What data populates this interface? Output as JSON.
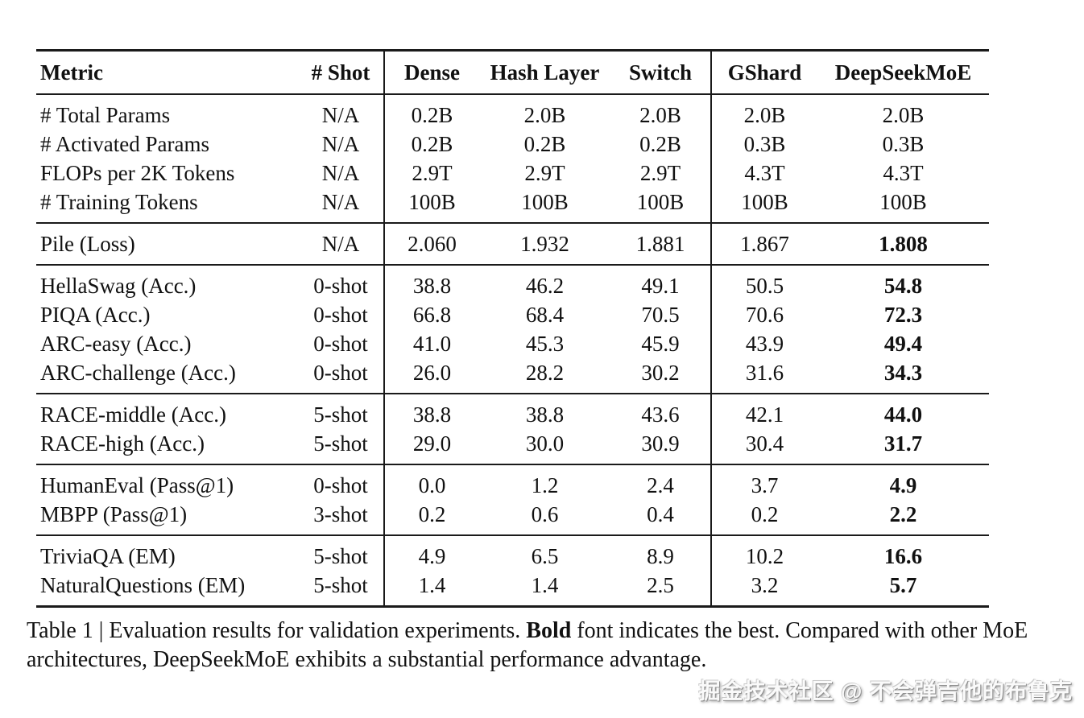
{
  "colors": {
    "background": "#ffffff",
    "text": "#111111",
    "rule": "#1a1a1a",
    "watermark": "#fafafa"
  },
  "table": {
    "header": [
      "Metric",
      "# Shot",
      "Dense",
      "Hash Layer",
      "Switch",
      "GShard",
      "DeepSeekMoE"
    ],
    "vertical_rule_after_columns": [
      1,
      4
    ],
    "groups": [
      {
        "name": "model-specs",
        "bold_last": false,
        "rows": [
          [
            "# Total Params",
            "N/A",
            "0.2B",
            "2.0B",
            "2.0B",
            "2.0B",
            "2.0B"
          ],
          [
            "# Activated Params",
            "N/A",
            "0.2B",
            "0.2B",
            "0.2B",
            "0.3B",
            "0.3B"
          ],
          [
            "FLOPs per 2K Tokens",
            "N/A",
            "2.9T",
            "2.9T",
            "2.9T",
            "4.3T",
            "4.3T"
          ],
          [
            "# Training Tokens",
            "N/A",
            "100B",
            "100B",
            "100B",
            "100B",
            "100B"
          ]
        ]
      },
      {
        "name": "pile-loss",
        "bold_last": true,
        "rows": [
          [
            "Pile (Loss)",
            "N/A",
            "2.060",
            "1.932",
            "1.881",
            "1.867",
            "1.808"
          ]
        ]
      },
      {
        "name": "zero-shot-accuracy",
        "bold_last": true,
        "rows": [
          [
            "HellaSwag (Acc.)",
            "0-shot",
            "38.8",
            "46.2",
            "49.1",
            "50.5",
            "54.8"
          ],
          [
            "PIQA (Acc.)",
            "0-shot",
            "66.8",
            "68.4",
            "70.5",
            "70.6",
            "72.3"
          ],
          [
            "ARC-easy (Acc.)",
            "0-shot",
            "41.0",
            "45.3",
            "45.9",
            "43.9",
            "49.4"
          ],
          [
            "ARC-challenge (Acc.)",
            "0-shot",
            "26.0",
            "28.2",
            "30.2",
            "31.6",
            "34.3"
          ]
        ]
      },
      {
        "name": "race-accuracy",
        "bold_last": true,
        "rows": [
          [
            "RACE-middle (Acc.)",
            "5-shot",
            "38.8",
            "38.8",
            "43.6",
            "42.1",
            "44.0"
          ],
          [
            "RACE-high (Acc.)",
            "5-shot",
            "29.0",
            "30.0",
            "30.9",
            "30.4",
            "31.7"
          ]
        ]
      },
      {
        "name": "code-generation",
        "bold_last": true,
        "rows": [
          [
            "HumanEval (Pass@1)",
            "0-shot",
            "0.0",
            "1.2",
            "2.4",
            "3.7",
            "4.9"
          ],
          [
            "MBPP (Pass@1)",
            "3-shot",
            "0.2",
            "0.6",
            "0.4",
            "0.2",
            "2.2"
          ]
        ]
      },
      {
        "name": "open-domain-qa",
        "bold_last": true,
        "rows": [
          [
            "TriviaQA (EM)",
            "5-shot",
            "4.9",
            "6.5",
            "8.9",
            "10.2",
            "16.6"
          ],
          [
            "NaturalQuestions (EM)",
            "5-shot",
            "1.4",
            "1.4",
            "2.5",
            "3.2",
            "5.7"
          ]
        ]
      }
    ]
  },
  "caption": {
    "prefix": "Table 1 | Evaluation results for validation experiments. ",
    "bold_word": "Bold",
    "suffix": " font indicates the best. Compared with other MoE architectures, DeepSeekMoE exhibits a substantial performance advantage."
  },
  "watermark": "掘金技术社区 @ 不会弹吉他的布鲁克"
}
